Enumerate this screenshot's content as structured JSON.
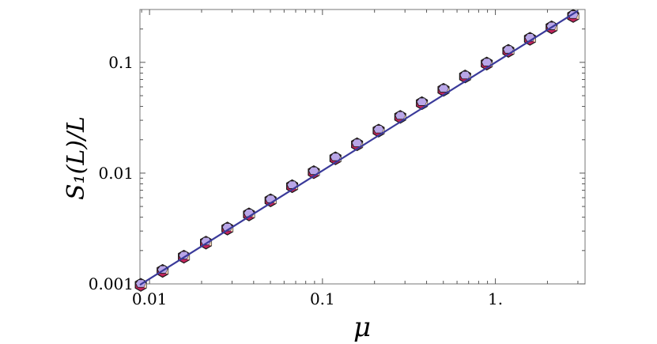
{
  "chart_data": {
    "type": "scatter",
    "title": "",
    "xlabel": "μ",
    "ylabel": "S₁(L)/L",
    "x_scale": "log",
    "y_scale": "log",
    "xlim": [
      0.0088,
      3.3
    ],
    "ylim": [
      0.001,
      0.3
    ],
    "grid": false,
    "x_ticks": [
      {
        "value": 0.01,
        "label": "0.01"
      },
      {
        "value": 0.1,
        "label": "0.1"
      },
      {
        "value": 1,
        "label": "1."
      }
    ],
    "y_ticks": [
      {
        "value": 0.001,
        "label": "0.001"
      },
      {
        "value": 0.01,
        "label": "0.01"
      },
      {
        "value": 0.1,
        "label": "0.1"
      }
    ],
    "series": [
      {
        "kind": "points",
        "marker": "polyhedron",
        "color": "#b9a6e8",
        "x": [
          0.0089,
          0.0119,
          0.0158,
          0.0212,
          0.0282,
          0.0376,
          0.0501,
          0.0668,
          0.0891,
          0.1189,
          0.1585,
          0.2113,
          0.2818,
          0.3758,
          0.5012,
          0.6683,
          0.8913,
          1.1885,
          1.5849,
          2.1135,
          2.8184
        ],
        "y": [
          0.00098,
          0.00131,
          0.00176,
          0.00236,
          0.00316,
          0.00424,
          0.00568,
          0.00762,
          0.0102,
          0.0136,
          0.0182,
          0.0242,
          0.0322,
          0.0428,
          0.0565,
          0.0745,
          0.0975,
          0.127,
          0.163,
          0.207,
          0.262
        ]
      },
      {
        "kind": "line",
        "color": "#3a3a9a",
        "x": [
          0.0088,
          3.0
        ],
        "y": [
          0.00098,
          0.292
        ]
      }
    ]
  },
  "colors": {
    "frame": "#777777",
    "marker_fill": "#b9a6e8",
    "marker_shade": "#c0245a",
    "marker_edge": "#1a1a1a",
    "line": "#3a3a9a"
  }
}
